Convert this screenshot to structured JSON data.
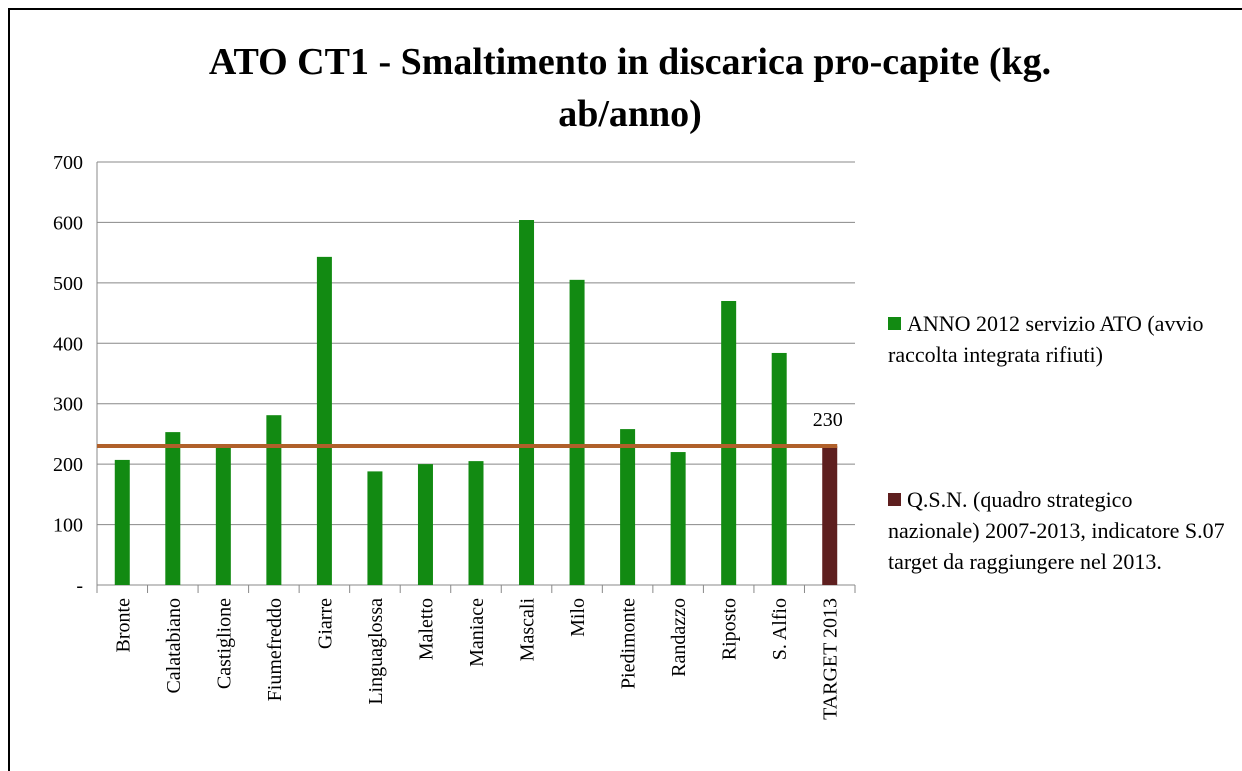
{
  "chart_data": {
    "type": "bar",
    "title": "ATO CT1 - Smaltimento in discarica pro-capite (kg. ab/anno)",
    "categories": [
      "Bronte",
      "Calatabiano",
      "Castiglione",
      "Fiumefreddo",
      "Giarre",
      "Linguaglossa",
      "Maletto",
      "Maniace",
      "Mascali",
      "Milo",
      "Piedimonte",
      "Randazzo",
      "Riposto",
      "S. Alfio",
      "TARGET 2013"
    ],
    "series": [
      {
        "name": "ANNO 2012 servizio ATO (avvio raccolta integrata rifiuti)",
        "color": "#128a12",
        "values": [
          207,
          253,
          228,
          281,
          543,
          188,
          200,
          205,
          604,
          505,
          258,
          220,
          470,
          384,
          null
        ]
      },
      {
        "name": "Q.S.N. (quadro strategico nazionale) 2007-2013, indicatore S.07  target da raggiungere nel 2013.",
        "color": "#5e1f1f",
        "values": [
          null,
          null,
          null,
          null,
          null,
          null,
          null,
          null,
          null,
          null,
          null,
          null,
          null,
          null,
          230
        ]
      }
    ],
    "ylim": [
      0,
      700
    ],
    "yticks": [
      {
        "value": 0,
        "label": "-"
      },
      100,
      200,
      300,
      400,
      500,
      600,
      700
    ],
    "grid": true,
    "legend": "right"
  }
}
